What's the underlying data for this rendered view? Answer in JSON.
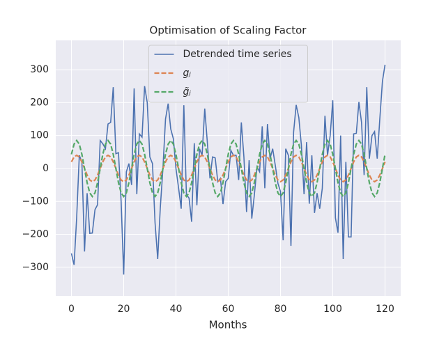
{
  "chart_data": {
    "type": "line",
    "title": "Optimisation of Scaling Factor",
    "x_label": "Months",
    "x": [
      0,
      1,
      2,
      3,
      4,
      5,
      6,
      7,
      8,
      9,
      10,
      11,
      12,
      13,
      14,
      15,
      16,
      17,
      18,
      19,
      20,
      21,
      22,
      23,
      24,
      25,
      26,
      27,
      28,
      29,
      30,
      31,
      32,
      33,
      34,
      35,
      36,
      37,
      38,
      39,
      40,
      41,
      42,
      43,
      44,
      45,
      46,
      47,
      48,
      49,
      50,
      51,
      52,
      53,
      54,
      55,
      56,
      57,
      58,
      59,
      60,
      61,
      62,
      63,
      64,
      65,
      66,
      67,
      68,
      69,
      70,
      71,
      72,
      73,
      74,
      75,
      76,
      77,
      78,
      79,
      80,
      81,
      82,
      83,
      84,
      85,
      86,
      87,
      88,
      89,
      90,
      91,
      92,
      93,
      94,
      95,
      96,
      97,
      98,
      99,
      100,
      101,
      102,
      103,
      104,
      105,
      106,
      107,
      108,
      109,
      110,
      111,
      112,
      113,
      114,
      115,
      116,
      117,
      118,
      119,
      120
    ],
    "series": [
      {
        "name": "Detrended time series",
        "color": "#4c72b0",
        "linestyle": "solid",
        "values": [
          -258,
          -293,
          -150,
          40,
          20,
          -252,
          -75,
          -197,
          -196,
          -125,
          -110,
          85,
          75,
          60,
          135,
          140,
          247,
          45,
          48,
          -100,
          -322,
          -10,
          15,
          -50,
          243,
          -78,
          105,
          95,
          250,
          200,
          35,
          15,
          -165,
          -275,
          -120,
          0,
          150,
          197,
          120,
          90,
          0,
          -60,
          -122,
          192,
          -80,
          -90,
          -162,
          77,
          -112,
          60,
          40,
          182,
          80,
          -30,
          35,
          32,
          -40,
          -30,
          -108,
          -40,
          -30,
          55,
          40,
          40,
          -35,
          140,
          35,
          -132,
          25,
          -152,
          -80,
          5,
          -10,
          128,
          -60,
          135,
          30,
          60,
          10,
          -45,
          -70,
          -218,
          60,
          40,
          -235,
          110,
          193,
          155,
          70,
          -78,
          80,
          -107,
          40,
          -135,
          -75,
          -122,
          -60,
          160,
          40,
          100,
          207,
          -150,
          -195,
          100,
          -275,
          20,
          -208,
          -208,
          105,
          107,
          202,
          140,
          -20,
          247,
          30,
          100,
          112,
          30,
          150,
          265,
          315
        ]
      },
      {
        "name": "gⱼ",
        "color": "#dd8452",
        "linestyle": "dashed",
        "values": [
          20,
          35,
          40,
          35,
          20,
          0,
          -20,
          -35,
          -40,
          -35,
          -20,
          0,
          20,
          35,
          40,
          35,
          20,
          0,
          -20,
          -35,
          -40,
          -35,
          -20,
          0,
          20,
          35,
          40,
          35,
          20,
          0,
          -20,
          -35,
          -40,
          -35,
          -20,
          0,
          20,
          35,
          40,
          35,
          20,
          0,
          -20,
          -35,
          -40,
          -35,
          -20,
          0,
          20,
          35,
          40,
          35,
          20,
          0,
          -20,
          -35,
          -40,
          -35,
          -20,
          0,
          20,
          35,
          40,
          35,
          20,
          0,
          -20,
          -35,
          -40,
          -35,
          -20,
          0,
          20,
          35,
          40,
          35,
          20,
          0,
          -20,
          -35,
          -40,
          -35,
          -20,
          0,
          20,
          35,
          40,
          35,
          20,
          0,
          -20,
          -35,
          -40,
          -35,
          -20,
          0,
          20,
          35,
          40,
          35,
          20,
          0,
          -20,
          -35,
          -40,
          -35,
          -20,
          0,
          20,
          35,
          40,
          35,
          20,
          0,
          -20,
          -35,
          -40,
          -35,
          -20,
          0,
          20
        ]
      },
      {
        "name": "g̃ⱼ",
        "color": "#55a868",
        "linestyle": "dashed",
        "values": [
          43,
          74,
          85,
          74,
          43,
          0,
          -43,
          -74,
          -85,
          -74,
          -43,
          0,
          43,
          74,
          85,
          74,
          43,
          0,
          -43,
          -74,
          -85,
          -74,
          -43,
          0,
          43,
          74,
          85,
          74,
          43,
          0,
          -43,
          -74,
          -85,
          -74,
          -43,
          0,
          43,
          74,
          85,
          74,
          43,
          0,
          -43,
          -74,
          -85,
          -74,
          -43,
          0,
          43,
          74,
          85,
          74,
          43,
          0,
          -43,
          -74,
          -85,
          -74,
          -43,
          0,
          43,
          74,
          85,
          74,
          43,
          0,
          -43,
          -74,
          -85,
          -74,
          -43,
          0,
          43,
          74,
          85,
          74,
          43,
          0,
          -43,
          -74,
          -85,
          -74,
          -43,
          0,
          43,
          74,
          85,
          74,
          43,
          0,
          -43,
          -74,
          -85,
          -74,
          -43,
          0,
          43,
          74,
          85,
          74,
          43,
          0,
          -43,
          -74,
          -85,
          -74,
          -43,
          0,
          43,
          74,
          85,
          74,
          43,
          0,
          -43,
          -74,
          -85,
          -74,
          -43,
          0,
          43
        ]
      }
    ],
    "xlim": [
      -6,
      126
    ],
    "ylim": [
      -387,
      389
    ],
    "xticks": [
      0,
      20,
      40,
      60,
      80,
      100,
      120
    ],
    "yticks": [
      {
        "value": -300,
        "label": "−300"
      },
      {
        "value": -200,
        "label": "−200"
      },
      {
        "value": -100,
        "label": "−100"
      },
      0,
      100,
      200,
      300
    ],
    "grid": true,
    "legend": "upper center"
  }
}
